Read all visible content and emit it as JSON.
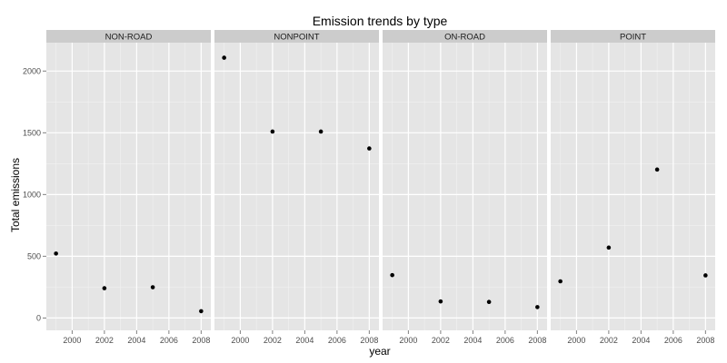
{
  "chart_data": {
    "type": "scatter",
    "title": "Emission trends by type",
    "xlabel": "year",
    "ylabel": "Total emissions",
    "xlim": [
      1998.4,
      2008.6
    ],
    "ylim": [
      -100,
      2230
    ],
    "x_ticks": [
      2000,
      2002,
      2004,
      2006,
      2008
    ],
    "y_ticks": [
      0,
      500,
      1000,
      1500,
      2000
    ],
    "grid": true,
    "colors": {
      "panel_background": "#e5e5e5",
      "strip_background": "#cccccc",
      "grid_major": "#ffffff",
      "grid_minor": "#f2f2f2",
      "point": "#000000"
    },
    "panels": [
      {
        "label": "NON-ROAD",
        "points": [
          {
            "x": 1999,
            "y": 522
          },
          {
            "x": 2002,
            "y": 241
          },
          {
            "x": 2005,
            "y": 249
          },
          {
            "x": 2008,
            "y": 55
          }
        ]
      },
      {
        "label": "NONPOINT",
        "points": [
          {
            "x": 1999,
            "y": 2108
          },
          {
            "x": 2002,
            "y": 1510
          },
          {
            "x": 2005,
            "y": 1510
          },
          {
            "x": 2008,
            "y": 1373
          }
        ]
      },
      {
        "label": "ON-ROAD",
        "points": [
          {
            "x": 1999,
            "y": 347
          },
          {
            "x": 2002,
            "y": 134
          },
          {
            "x": 2005,
            "y": 130
          },
          {
            "x": 2008,
            "y": 88
          }
        ]
      },
      {
        "label": "POINT",
        "points": [
          {
            "x": 1999,
            "y": 297
          },
          {
            "x": 2002,
            "y": 570
          },
          {
            "x": 2005,
            "y": 1202
          },
          {
            "x": 2008,
            "y": 345
          }
        ]
      }
    ]
  }
}
